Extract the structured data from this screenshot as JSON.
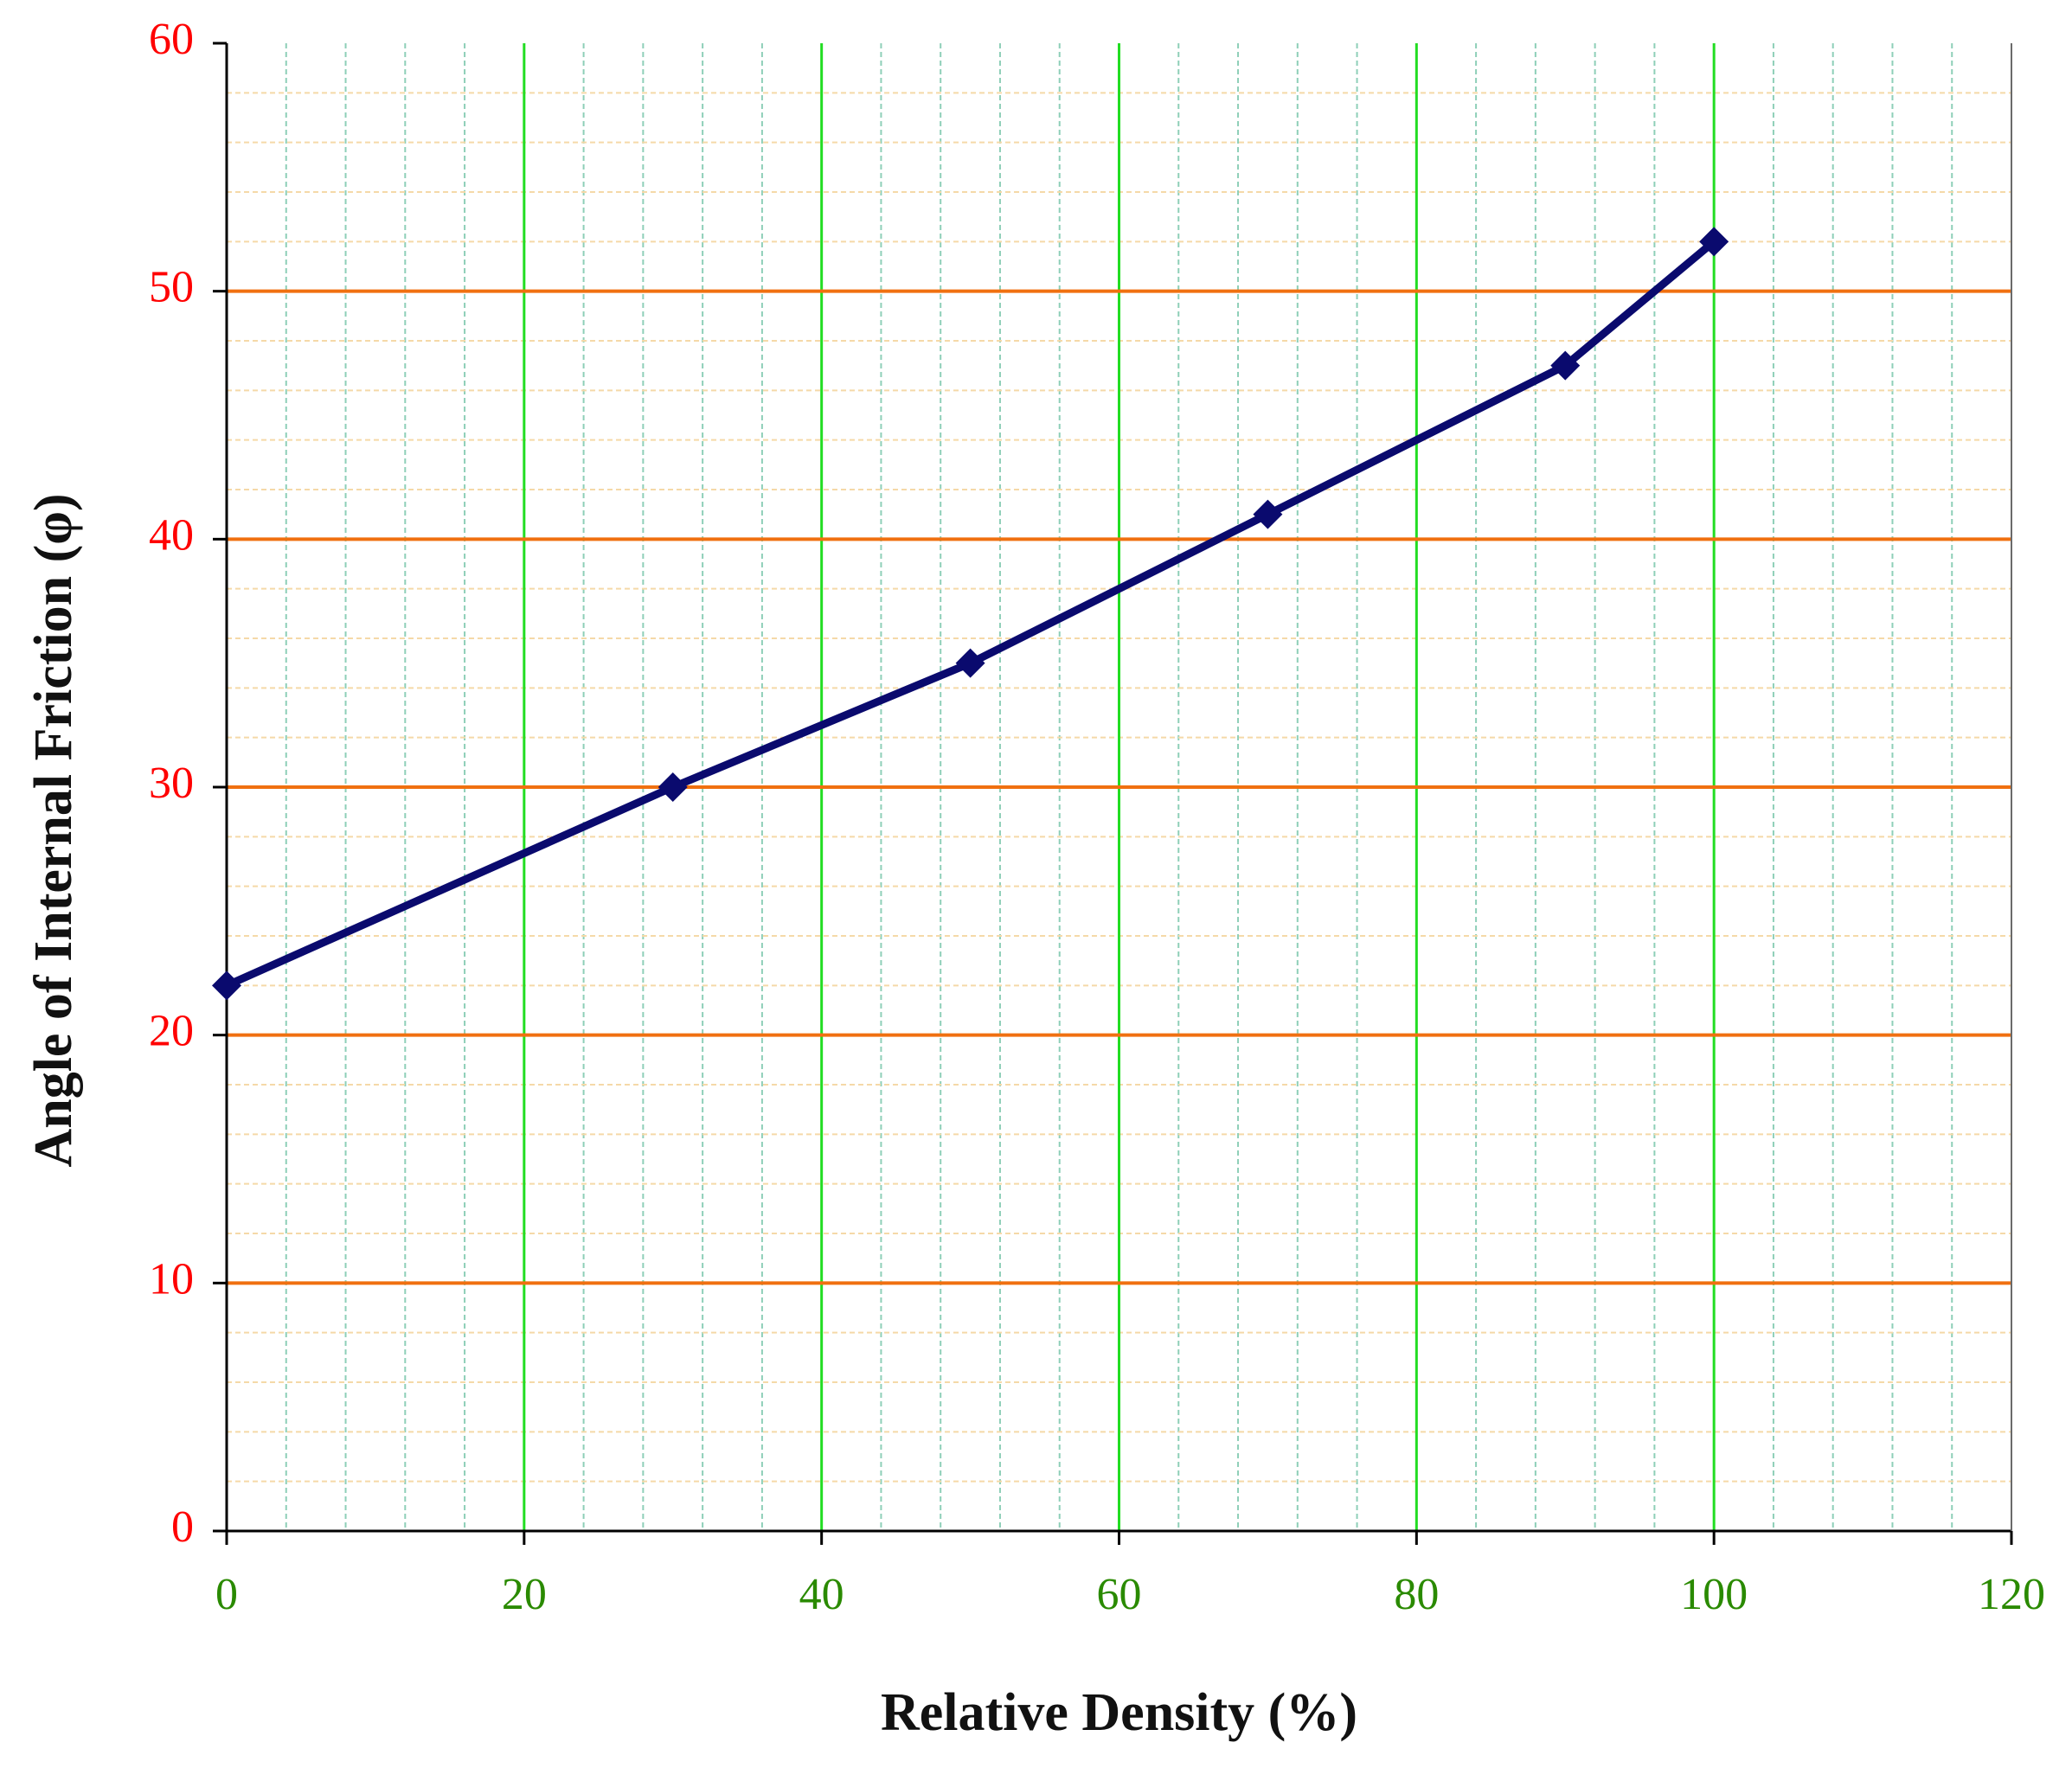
{
  "chart_data": {
    "type": "line",
    "title": "",
    "xlabel": "Relative Density (%)",
    "ylabel": "Angle of Internal Friction  (φ)",
    "xlim": [
      0,
      120
    ],
    "ylim": [
      0,
      60
    ],
    "x_ticks": [
      "0",
      "20",
      "40",
      "60",
      "80",
      "100",
      "120"
    ],
    "y_ticks": [
      "0",
      "10",
      "20",
      "30",
      "40",
      "50",
      "60"
    ],
    "grid": true,
    "legend": "none",
    "series": [
      {
        "x": [
          0,
          30,
          50,
          70,
          90,
          100
        ],
        "y": [
          22,
          30,
          35,
          41,
          47,
          52
        ],
        "color": "#0a0a6e",
        "marker": "diamond"
      }
    ]
  },
  "colors": {
    "major_x_grid": "#22dd22",
    "major_y_grid": "#f07010",
    "minor_x_grid": "#8ecfb8",
    "minor_y_grid": "#f5d9a8",
    "x_tick_text": "#2a8a00",
    "y_tick_text": "#ff0000",
    "axis": "#000000"
  }
}
